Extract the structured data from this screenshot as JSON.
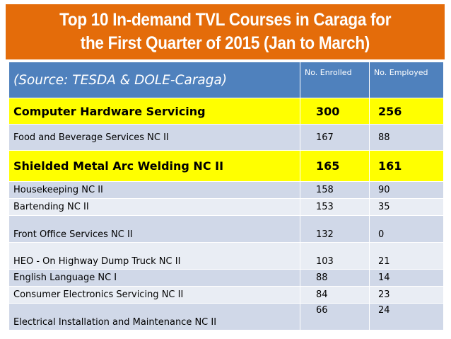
{
  "title": {
    "line1": "Top 10 In-demand TVL Courses in Caraga  for",
    "line2": "the First Quarter of 2015 (Jan to March)"
  },
  "table": {
    "source": "(Source: TESDA & DOLE-Caraga)",
    "col_enrolled": "No. Enrolled",
    "col_employed": "No. Employed",
    "rows": [
      {
        "course": "Computer Hardware Servicing",
        "enrolled": "300",
        "employed": "256"
      },
      {
        "course": "Food and Beverage Services NC II",
        "enrolled": "167",
        "employed": "88"
      },
      {
        "course": "Shielded Metal Arc Welding NC II",
        "enrolled": "165",
        "employed": "161"
      },
      {
        "course": "Housekeeping NC II",
        "enrolled": "158",
        "employed": "90"
      },
      {
        "course": "Bartending NC II",
        "enrolled": "153",
        "employed": "35"
      },
      {
        "course": "Front Office Services NC II",
        "enrolled": "132",
        "employed": "0"
      },
      {
        "course": "HEO - On Highway Dump Truck NC II",
        "enrolled": "103",
        "employed": "21"
      },
      {
        "course": "English Language NC I",
        "enrolled": "88",
        "employed": "14"
      },
      {
        "course": "Consumer Electronics Servicing NC II",
        "enrolled": "84",
        "employed": "23"
      },
      {
        "course": "Electrical Installation and Maintenance NC II",
        "enrolled": "66",
        "employed": "24"
      }
    ]
  },
  "colors": {
    "banner": "#e46c0a",
    "header": "#4f81bd",
    "highlight": "#ffff00",
    "row_a": "#d0d8e8",
    "row_b": "#e9edf4"
  }
}
